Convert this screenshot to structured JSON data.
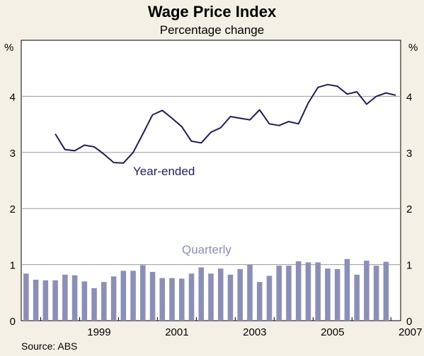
{
  "chart_data": {
    "type": "bar+line",
    "title": "Wage Price Index",
    "subtitle": "Percentage change",
    "unit_left": "%",
    "unit_right": "%",
    "source": "Source: ABS",
    "ylim": [
      0,
      5
    ],
    "yticks": [
      "0",
      "1",
      "2",
      "3",
      "4"
    ],
    "xticks": [
      "1999",
      "2001",
      "2003",
      "2005",
      "2007"
    ],
    "x_start_year": 1997.5,
    "x_end_year": 2007.25,
    "series": [
      {
        "name": "Quarterly",
        "kind": "bar",
        "color": "#8c8fb5",
        "start": "1997-Q3",
        "values": [
          0.84,
          0.73,
          0.72,
          0.72,
          0.82,
          0.81,
          0.7,
          0.58,
          0.69,
          0.79,
          0.89,
          0.89,
          0.99,
          0.87,
          0.76,
          0.76,
          0.75,
          0.84,
          0.95,
          0.84,
          0.93,
          0.82,
          0.92,
          1.0,
          0.69,
          0.8,
          0.98,
          0.98,
          1.06,
          1.04,
          1.04,
          0.93,
          0.92,
          1.1,
          0.82,
          1.07,
          0.98,
          1.05
        ]
      },
      {
        "name": "Year-ended",
        "kind": "line",
        "color": "#1e1e55",
        "start": "1998-Q2",
        "values": [
          3.33,
          3.05,
          3.03,
          3.13,
          3.1,
          2.97,
          2.82,
          2.81,
          3.0,
          3.33,
          3.67,
          3.75,
          3.61,
          3.46,
          3.2,
          3.17,
          3.36,
          3.44,
          3.64,
          3.61,
          3.58,
          3.76,
          3.51,
          3.48,
          3.55,
          3.51,
          3.88,
          4.16,
          4.21,
          4.18,
          4.04,
          4.08,
          3.86,
          4.0,
          4.06,
          4.02
        ]
      }
    ],
    "annotations": {
      "line_label": "Year-ended",
      "bar_label": "Quarterly"
    }
  }
}
